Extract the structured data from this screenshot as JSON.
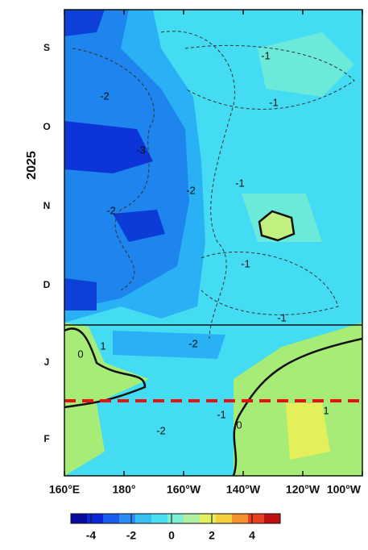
{
  "chart_data": {
    "type": "hovmoller",
    "year_label": "2025",
    "months": [
      "S",
      "O",
      "N",
      "D",
      "J",
      "F"
    ],
    "xlim": [
      160,
      260
    ],
    "xticks": [
      {
        "value": 160,
        "label": "160°E"
      },
      {
        "value": 180,
        "label": "180°"
      },
      {
        "value": 200,
        "label": "160°W"
      },
      {
        "value": 220,
        "label": "140°W"
      },
      {
        "value": 240,
        "label": "120°W"
      },
      {
        "value": 260,
        "label": "100°W"
      }
    ],
    "contour_labels": [
      -1,
      -1,
      -2,
      -3,
      -2,
      -2,
      -1,
      -1,
      -1,
      1,
      0,
      -2,
      -1,
      0,
      1,
      -2
    ],
    "colorbar": {
      "lim": [
        -5,
        5.4
      ],
      "ticks": [
        -4,
        -2,
        0,
        2,
        4
      ],
      "colors": [
        "#0a0aa0",
        "#0a28d8",
        "#1a5cf0",
        "#2a8cf4",
        "#38c0f4",
        "#48e0f0",
        "#7cf0d0",
        "#b0f0a0",
        "#e0f060",
        "#f4d040",
        "#f49030",
        "#e84020",
        "#c01010"
      ]
    }
  }
}
